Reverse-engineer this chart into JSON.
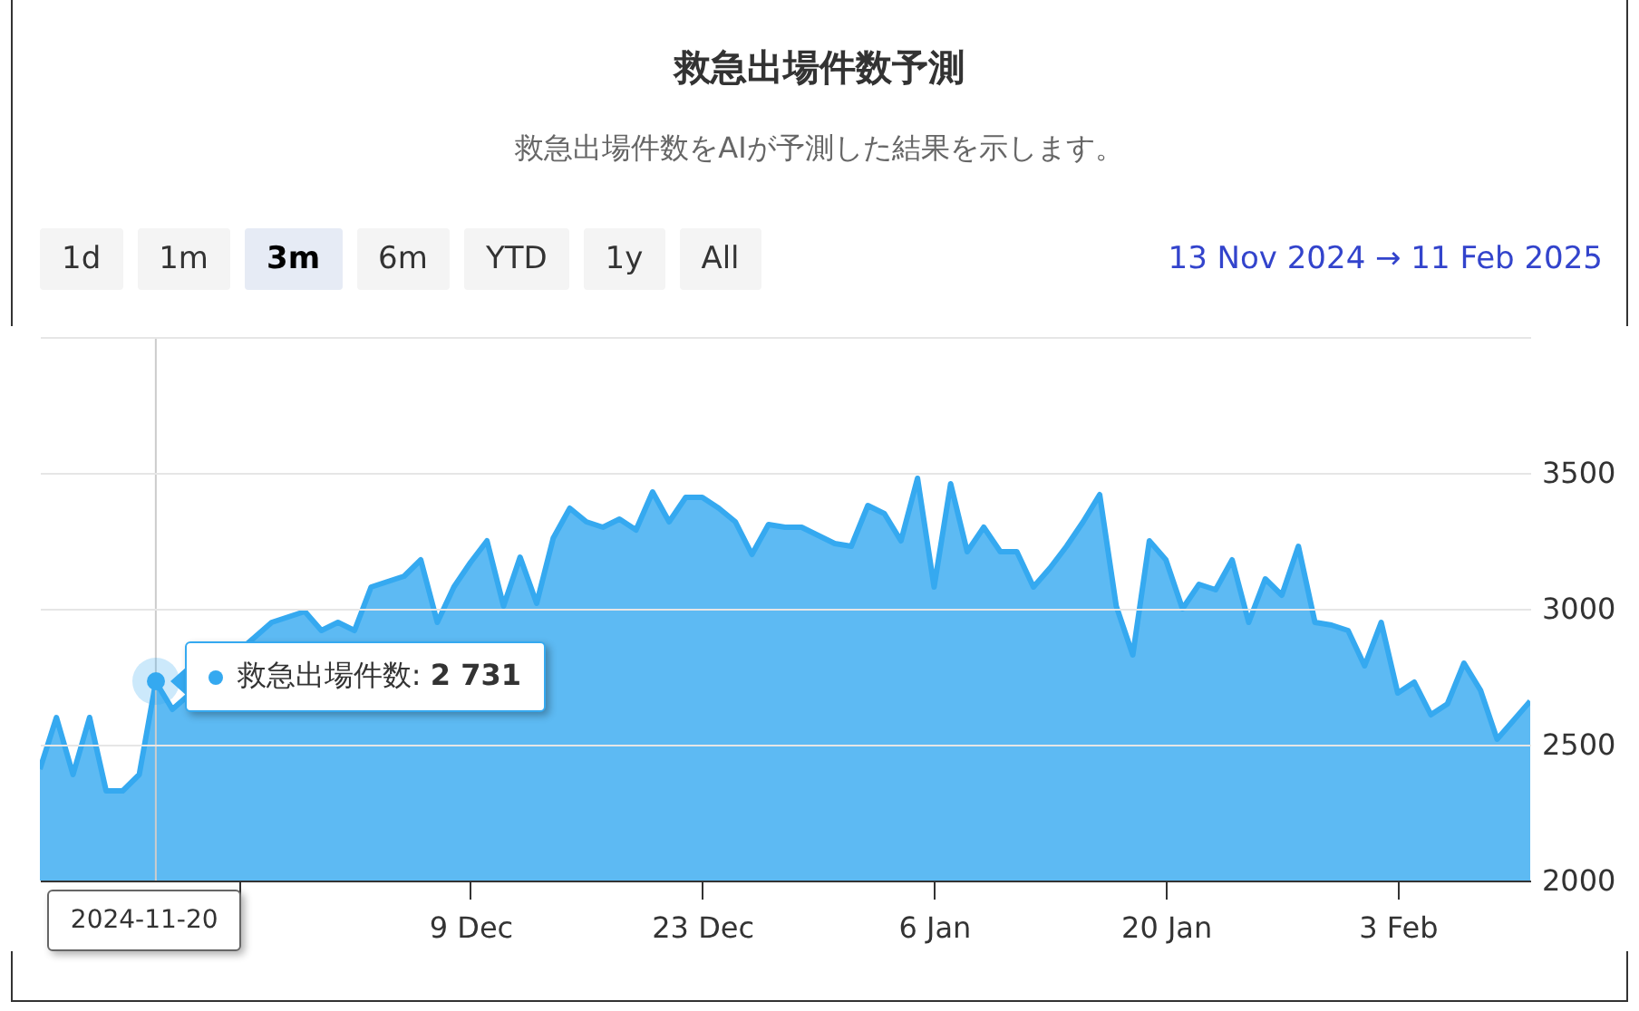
{
  "chart_data": {
    "type": "area",
    "title": "救急出場件数予測",
    "subtitle": "救急出場件数をAIが予測した結果を示します。",
    "x": [
      "2024-11-13",
      "2024-11-14",
      "2024-11-15",
      "2024-11-16",
      "2024-11-17",
      "2024-11-18",
      "2024-11-19",
      "2024-11-20",
      "2024-11-21",
      "2024-11-22",
      "2024-11-23",
      "2024-11-24",
      "2024-11-25",
      "2024-11-26",
      "2024-11-27",
      "2024-11-28",
      "2024-11-29",
      "2024-11-30",
      "2024-12-01",
      "2024-12-02",
      "2024-12-03",
      "2024-12-04",
      "2024-12-05",
      "2024-12-06",
      "2024-12-07",
      "2024-12-08",
      "2024-12-09",
      "2024-12-10",
      "2024-12-11",
      "2024-12-12",
      "2024-12-13",
      "2024-12-14",
      "2024-12-15",
      "2024-12-16",
      "2024-12-17",
      "2024-12-18",
      "2024-12-19",
      "2024-12-20",
      "2024-12-21",
      "2024-12-22",
      "2024-12-23",
      "2024-12-24",
      "2024-12-25",
      "2024-12-26",
      "2024-12-27",
      "2024-12-28",
      "2024-12-29",
      "2024-12-30",
      "2024-12-31",
      "2025-01-01",
      "2025-01-02",
      "2025-01-03",
      "2025-01-04",
      "2025-01-05",
      "2025-01-06",
      "2025-01-07",
      "2025-01-08",
      "2025-01-09",
      "2025-01-10",
      "2025-01-11",
      "2025-01-12",
      "2025-01-13",
      "2025-01-14",
      "2025-01-15",
      "2025-01-16",
      "2025-01-17",
      "2025-01-18",
      "2025-01-19",
      "2025-01-20",
      "2025-01-21",
      "2025-01-22",
      "2025-01-23",
      "2025-01-24",
      "2025-01-25",
      "2025-01-26",
      "2025-01-27",
      "2025-01-28",
      "2025-01-29",
      "2025-01-30",
      "2025-01-31",
      "2025-02-01",
      "2025-02-02",
      "2025-02-03",
      "2025-02-04",
      "2025-02-05",
      "2025-02-06",
      "2025-02-07",
      "2025-02-08",
      "2025-02-09",
      "2025-02-10",
      "2025-02-11"
    ],
    "series": [
      {
        "color": "#35a9f0",
        "values": [
          2410,
          2600,
          2390,
          2600,
          2330,
          2330,
          2390,
          2731,
          2630,
          null,
          null,
          null,
          null,
          null,
          2950,
          2970,
          2990,
          2920,
          2950,
          2920,
          3080,
          3100,
          3120,
          3180,
          2950,
          3080,
          3170,
          3250,
          3010,
          3190,
          3020,
          3260,
          3370,
          3320,
          3300,
          3330,
          3290,
          3430,
          3320,
          3410,
          3410,
          3370,
          3320,
          3200,
          3310,
          3300,
          3300,
          3270,
          3240,
          3230,
          3380,
          3350,
          3250,
          3480,
          3080,
          3460,
          3210,
          3300,
          3210,
          3210,
          3080,
          3150,
          3230,
          3320,
          3420,
          3010,
          2830,
          3250,
          3180,
          3000,
          3090,
          3070,
          3180,
          2950,
          3110,
          3050,
          3230,
          2950,
          2940,
          2920,
          2790,
          2950,
          2690,
          2730,
          2610,
          2650,
          2800,
          2700,
          2520,
          2590,
          2660
        ]
      }
    ],
    "xlim": [
      "2024-11-13",
      "2025-02-11"
    ],
    "xticks": [
      {
        "value": "2024-11-25",
        "label": null
      },
      {
        "value": "2024-12-09",
        "label": "9 Dec"
      },
      {
        "value": "2024-12-23",
        "label": "23 Dec"
      },
      {
        "value": "2025-01-06",
        "label": "6 Jan"
      },
      {
        "value": "2025-01-20",
        "label": "20 Jan"
      },
      {
        "value": "2025-02-03",
        "label": "3 Feb"
      }
    ],
    "ylim": [
      2000,
      4000
    ],
    "yticks": [
      2000,
      2500,
      3000,
      3500,
      {
        "value": 4000,
        "label": null
      }
    ],
    "grid": "y",
    "ref_lines": [
      {
        "axis": "x",
        "value": "2024-11-20",
        "color": "#cccccc"
      }
    ],
    "annotations": [
      "1d",
      "1m",
      "3m",
      "6m",
      "YTD",
      "1y",
      "All",
      "13 Nov 2024 → 11 Feb 2025",
      "救急出場件数: 2 731",
      "2024-11-20"
    ]
  }
}
